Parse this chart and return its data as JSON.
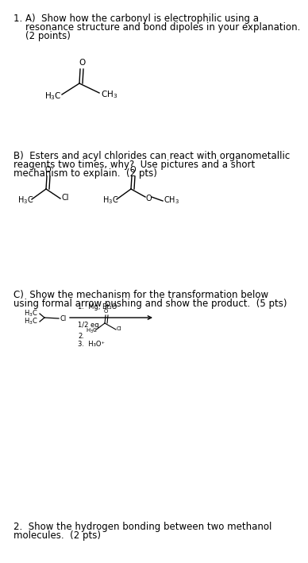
{
  "bg_color": "#ffffff",
  "text_color": "#000000",
  "fs_main": 8.5,
  "fs_chem": 7.5,
  "fs_small": 6.0,
  "q1_line1": "1. A)  Show how the carbonyl is electrophilic using a",
  "q1_line2": "    resonance structure and bond dipoles in your explanation.",
  "q1_line3": "    (2 points)",
  "qB_line1": "B)  Esters and acyl chlorides can react with organometallic",
  "qB_line2": "reagents two times, why?  Use pictures and a short",
  "qB_line3": "mechanism to explain.  (2 pts)",
  "qC_line1": "C)  Show the mechanism for the transformation below",
  "qC_line2": "using formal arrow pushing and show the product.  (5 pts)",
  "q2_line1": "2.  Show the hydrogen bonding between two methanol",
  "q2_line2": "molecules.  (2 pts)"
}
